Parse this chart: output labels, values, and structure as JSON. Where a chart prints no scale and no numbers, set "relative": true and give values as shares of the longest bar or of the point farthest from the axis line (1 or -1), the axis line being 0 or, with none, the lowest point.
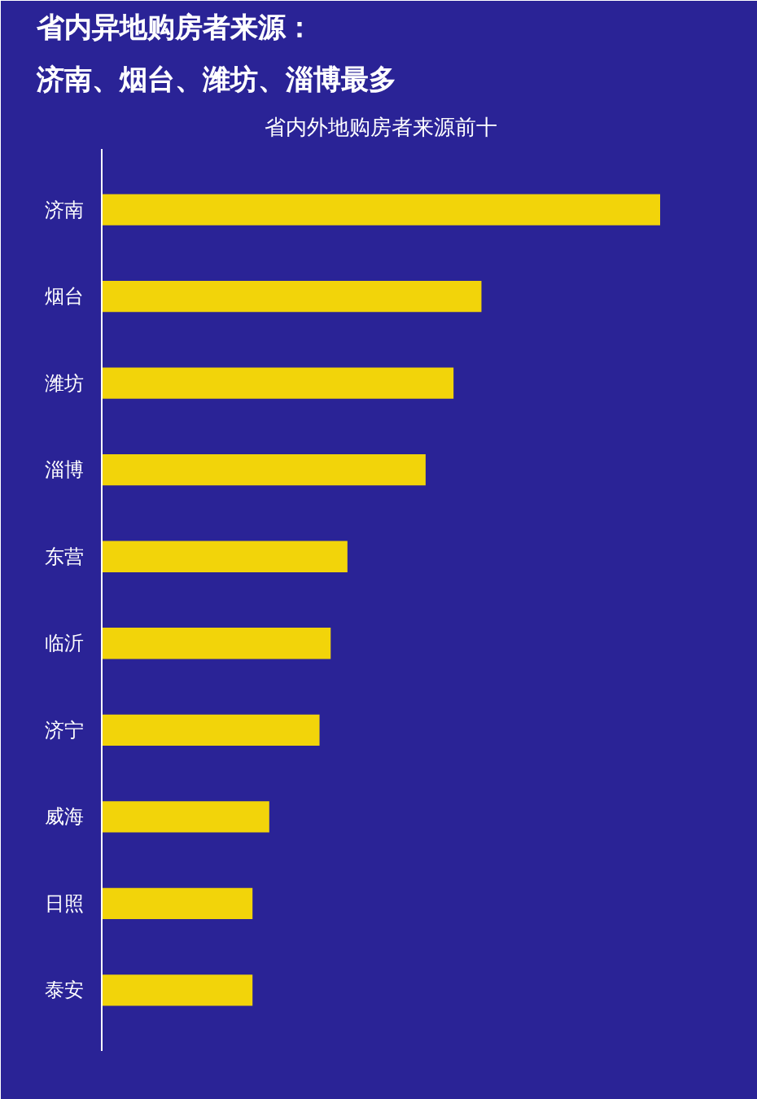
{
  "chart_data": {
    "type": "bar",
    "orientation": "horizontal",
    "relative": true,
    "title": "省内异地购房者来源：",
    "subtitle": "济南、烟台、潍坊、淄博最多",
    "annotations": [
      "省内外地购房者来源前十"
    ],
    "categories": [
      "济南",
      "烟台",
      "潍坊",
      "淄博",
      "东营",
      "临沂",
      "济宁",
      "威海",
      "日照",
      "泰安"
    ],
    "values": [
      1,
      0.68,
      0.63,
      0.58,
      0.44,
      0.41,
      0.39,
      0.3,
      0.27,
      0.27
    ],
    "color": "#f2d40a",
    "grid": false
  }
}
